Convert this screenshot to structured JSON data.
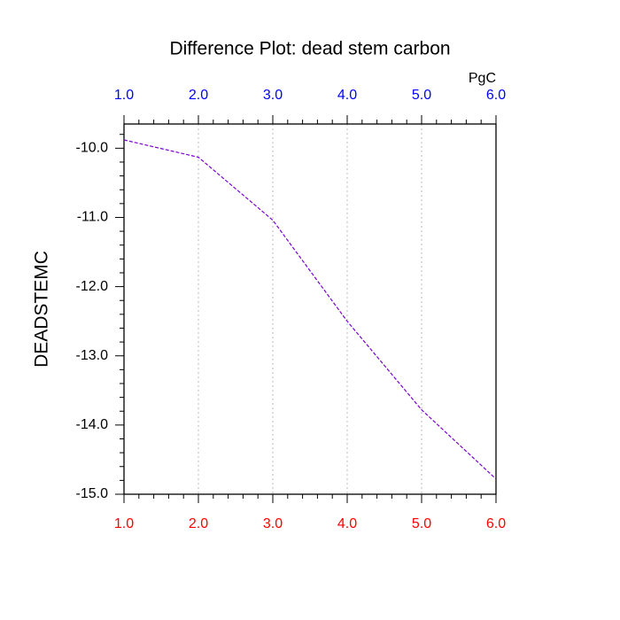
{
  "chart_data": {
    "type": "line",
    "title": "Difference Plot: dead stem carbon",
    "units": "PgC",
    "y_label": "DEADSTEMC",
    "x": [
      1,
      2,
      3,
      4,
      5,
      6
    ],
    "series": [
      {
        "color": "#7a00d0",
        "values": [
          -9.88,
          -10.13,
          -11.04,
          -12.5,
          -13.78,
          -14.78
        ]
      }
    ],
    "line_style": "dashed",
    "xlim": [
      1,
      6
    ],
    "xticks": [
      {
        "value": 1,
        "label": "1.0"
      },
      {
        "value": 2,
        "label": "2.0"
      },
      {
        "value": 3,
        "label": "3.0"
      },
      {
        "value": 4,
        "label": "4.0"
      },
      {
        "value": 5,
        "label": "5.0"
      },
      {
        "value": 6,
        "label": "6.0"
      }
    ],
    "ylim": [
      -15.0,
      -9.65
    ],
    "yticks": [
      {
        "value": -15,
        "label": "-15.0"
      },
      {
        "value": -14,
        "label": "-14.0"
      },
      {
        "value": -13,
        "label": "-13.0"
      },
      {
        "value": -12,
        "label": "-12.0"
      },
      {
        "value": -11,
        "label": "-11.0"
      },
      {
        "value": -10,
        "label": "-10.0"
      }
    ],
    "bottom_tick_color": "#ff0000",
    "top_tick_color": "#0000ff",
    "grid": "x"
  }
}
